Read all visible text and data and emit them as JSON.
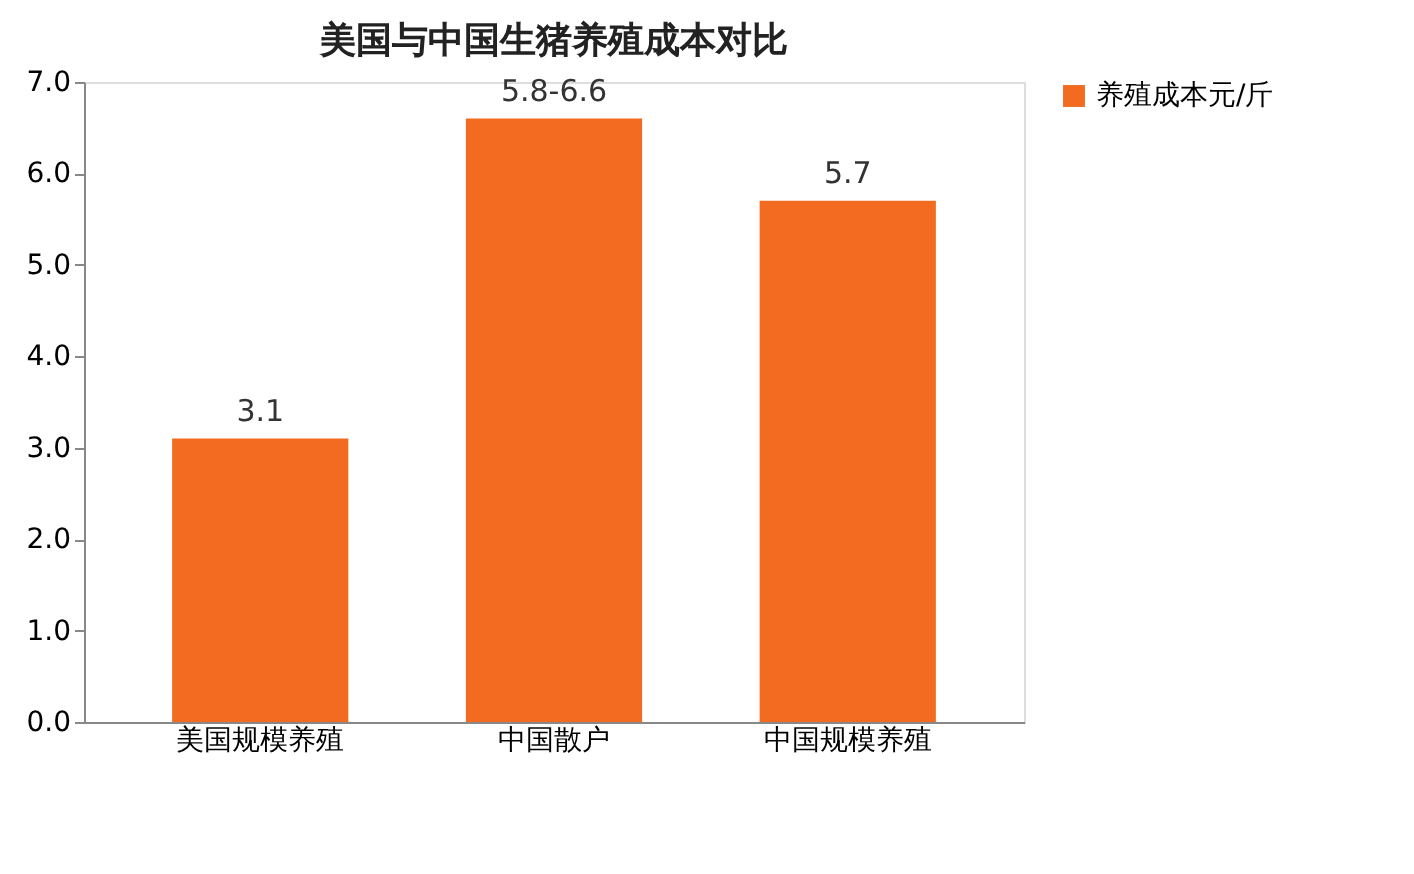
{
  "chart_data": {
    "type": "bar",
    "title": "美国与中国生猪养殖成本对比",
    "categories": [
      "美国规模养殖",
      "中国散户",
      "中国规模养殖"
    ],
    "series": [
      {
        "name": "养殖成本元/斤",
        "color": "#f26b21",
        "values": [
          3.1,
          6.6,
          5.7
        ],
        "value_labels": [
          "3.1",
          "5.8-6.6",
          "5.7"
        ]
      }
    ],
    "ylim": [
      0,
      7
    ],
    "yticks": [
      {
        "value": 0,
        "label": "0.0"
      },
      {
        "value": 1,
        "label": "1.0"
      },
      {
        "value": 2,
        "label": "2.0"
      },
      {
        "value": 3,
        "label": "3.0"
      },
      {
        "value": 4,
        "label": "4.0"
      },
      {
        "value": 5,
        "label": "5.0"
      },
      {
        "value": 6,
        "label": "6.0"
      },
      {
        "value": 7,
        "label": "7.0"
      }
    ],
    "grid": false,
    "legend": "right"
  }
}
